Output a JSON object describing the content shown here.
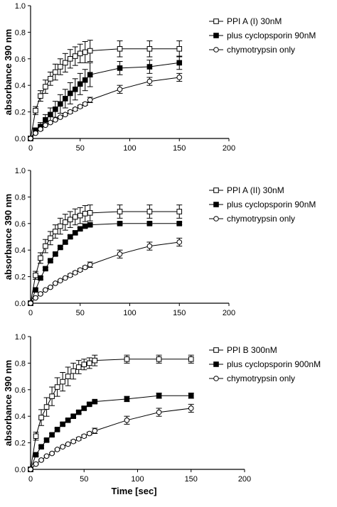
{
  "chart_data": [
    {
      "type": "line",
      "ylabel": "absorbance 390 nm",
      "xlabel": "",
      "xlim": [
        0,
        200
      ],
      "ylim": [
        0,
        1.0
      ],
      "xticks": [
        "0",
        "50",
        "100",
        "150",
        "200"
      ],
      "yticks": [
        "0.0",
        "0.2",
        "0.4",
        "0.6",
        "0.8",
        "1.0"
      ],
      "legend_position": "top-right",
      "series": [
        {
          "name": "PPI A (I) 30nM",
          "marker": "open-square",
          "x": [
            0,
            5,
            10,
            15,
            20,
            25,
            30,
            35,
            40,
            45,
            50,
            55,
            60,
            90,
            120,
            150
          ],
          "y": [
            0.0,
            0.21,
            0.32,
            0.39,
            0.45,
            0.5,
            0.54,
            0.57,
            0.6,
            0.62,
            0.64,
            0.65,
            0.66,
            0.675,
            0.675,
            0.675
          ],
          "err": [
            0.0,
            0.03,
            0.04,
            0.05,
            0.05,
            0.06,
            0.06,
            0.07,
            0.07,
            0.07,
            0.07,
            0.08,
            0.08,
            0.06,
            0.06,
            0.06
          ]
        },
        {
          "name": "plus cyclopsporin 90nM",
          "marker": "filled-square",
          "x": [
            0,
            5,
            10,
            15,
            20,
            25,
            30,
            35,
            40,
            45,
            50,
            55,
            60,
            90,
            120,
            150
          ],
          "y": [
            0.0,
            0.06,
            0.09,
            0.14,
            0.18,
            0.22,
            0.26,
            0.3,
            0.34,
            0.37,
            0.41,
            0.44,
            0.48,
            0.53,
            0.54,
            0.57
          ],
          "err": [
            0.0,
            0.02,
            0.03,
            0.04,
            0.05,
            0.06,
            0.07,
            0.07,
            0.08,
            0.08,
            0.08,
            0.08,
            0.09,
            0.05,
            0.05,
            0.05
          ]
        },
        {
          "name": "chymotrypsin only",
          "marker": "open-circle",
          "x": [
            0,
            5,
            10,
            15,
            20,
            25,
            30,
            35,
            40,
            45,
            50,
            55,
            60,
            90,
            120,
            150
          ],
          "y": [
            0.0,
            0.04,
            0.07,
            0.1,
            0.12,
            0.14,
            0.16,
            0.18,
            0.2,
            0.22,
            0.24,
            0.26,
            0.29,
            0.37,
            0.43,
            0.46
          ],
          "err": [
            0.0,
            0.005,
            0.005,
            0.005,
            0.005,
            0.005,
            0.005,
            0.005,
            0.01,
            0.01,
            0.01,
            0.01,
            0.02,
            0.03,
            0.03,
            0.03
          ]
        }
      ]
    },
    {
      "type": "line",
      "ylabel": "absorbance 390 nm",
      "xlabel": "",
      "xlim": [
        0,
        200
      ],
      "ylim": [
        0,
        1.0
      ],
      "xticks": [
        "0",
        "50",
        "100",
        "150",
        "200"
      ],
      "yticks": [
        "0.0",
        "0.2",
        "0.4",
        "0.6",
        "0.8",
        "1.0"
      ],
      "legend_position": "right",
      "series": [
        {
          "name": "PPI A (II) 30nM",
          "marker": "open-square",
          "x": [
            0,
            5,
            10,
            15,
            20,
            25,
            30,
            35,
            40,
            45,
            50,
            55,
            60,
            90,
            120,
            150
          ],
          "y": [
            0.0,
            0.21,
            0.34,
            0.43,
            0.49,
            0.54,
            0.58,
            0.61,
            0.63,
            0.65,
            0.66,
            0.675,
            0.68,
            0.69,
            0.69,
            0.69
          ],
          "err": [
            0.0,
            0.03,
            0.04,
            0.05,
            0.05,
            0.05,
            0.06,
            0.06,
            0.06,
            0.06,
            0.06,
            0.06,
            0.06,
            0.05,
            0.05,
            0.05
          ]
        },
        {
          "name": "plus cyclopsporin 90nM",
          "marker": "filled-square",
          "x": [
            0,
            5,
            10,
            15,
            20,
            25,
            30,
            35,
            40,
            45,
            50,
            55,
            60,
            90,
            120,
            150
          ],
          "y": [
            0.0,
            0.1,
            0.19,
            0.26,
            0.32,
            0.37,
            0.42,
            0.46,
            0.5,
            0.53,
            0.56,
            0.58,
            0.59,
            0.6,
            0.6,
            0.6
          ],
          "err": [
            0.0,
            0.01,
            0.01,
            0.01,
            0.01,
            0.01,
            0.01,
            0.01,
            0.01,
            0.01,
            0.01,
            0.01,
            0.01,
            0.01,
            0.01,
            0.01
          ]
        },
        {
          "name": "chymotrypsin only",
          "marker": "open-circle",
          "x": [
            0,
            5,
            10,
            15,
            20,
            25,
            30,
            35,
            40,
            45,
            50,
            55,
            60,
            90,
            120,
            150
          ],
          "y": [
            0.0,
            0.04,
            0.07,
            0.1,
            0.12,
            0.15,
            0.17,
            0.19,
            0.21,
            0.23,
            0.25,
            0.27,
            0.29,
            0.37,
            0.43,
            0.46
          ],
          "err": [
            0.0,
            0.005,
            0.005,
            0.005,
            0.005,
            0.005,
            0.005,
            0.005,
            0.01,
            0.01,
            0.01,
            0.01,
            0.02,
            0.03,
            0.03,
            0.03
          ]
        }
      ]
    },
    {
      "type": "line",
      "ylabel": "absorbance 390 nm",
      "xlabel": "Time [sec]",
      "xlim": [
        0,
        200
      ],
      "ylim": [
        0,
        1.0
      ],
      "xticks": [
        "0",
        "50",
        "100",
        "150",
        "200"
      ],
      "yticks": [
        "0.0",
        "0.2",
        "0.4",
        "0.6",
        "0.8",
        "1.0"
      ],
      "legend_position": "top-right",
      "series": [
        {
          "name": "PPI B 300nM",
          "marker": "open-square",
          "x": [
            0,
            5,
            10,
            15,
            20,
            25,
            30,
            35,
            40,
            45,
            50,
            55,
            60,
            90,
            120,
            150
          ],
          "y": [
            0.0,
            0.25,
            0.39,
            0.47,
            0.55,
            0.62,
            0.66,
            0.7,
            0.74,
            0.77,
            0.79,
            0.8,
            0.82,
            0.83,
            0.83,
            0.83
          ],
          "err": [
            0.0,
            0.03,
            0.06,
            0.07,
            0.07,
            0.07,
            0.07,
            0.07,
            0.06,
            0.05,
            0.04,
            0.04,
            0.04,
            0.03,
            0.03,
            0.03
          ]
        },
        {
          "name": "plus cyclopsporin 900nM",
          "marker": "filled-square",
          "x": [
            0,
            5,
            10,
            15,
            20,
            25,
            30,
            35,
            40,
            45,
            50,
            55,
            60,
            90,
            120,
            150
          ],
          "y": [
            0.0,
            0.11,
            0.17,
            0.22,
            0.26,
            0.3,
            0.34,
            0.37,
            0.4,
            0.43,
            0.46,
            0.49,
            0.51,
            0.53,
            0.555,
            0.555
          ],
          "err": [
            0.0,
            0.01,
            0.01,
            0.01,
            0.01,
            0.01,
            0.01,
            0.01,
            0.01,
            0.01,
            0.01,
            0.01,
            0.01,
            0.02,
            0.02,
            0.02
          ]
        },
        {
          "name": "chymotrypsin only",
          "marker": "open-circle",
          "x": [
            0,
            5,
            10,
            15,
            20,
            25,
            30,
            35,
            40,
            45,
            50,
            55,
            60,
            90,
            120,
            150
          ],
          "y": [
            0.0,
            0.04,
            0.07,
            0.1,
            0.12,
            0.15,
            0.17,
            0.19,
            0.21,
            0.23,
            0.25,
            0.27,
            0.29,
            0.37,
            0.43,
            0.46
          ],
          "err": [
            0.0,
            0.005,
            0.005,
            0.005,
            0.005,
            0.005,
            0.005,
            0.005,
            0.01,
            0.01,
            0.01,
            0.01,
            0.02,
            0.03,
            0.03,
            0.03
          ]
        }
      ]
    }
  ]
}
